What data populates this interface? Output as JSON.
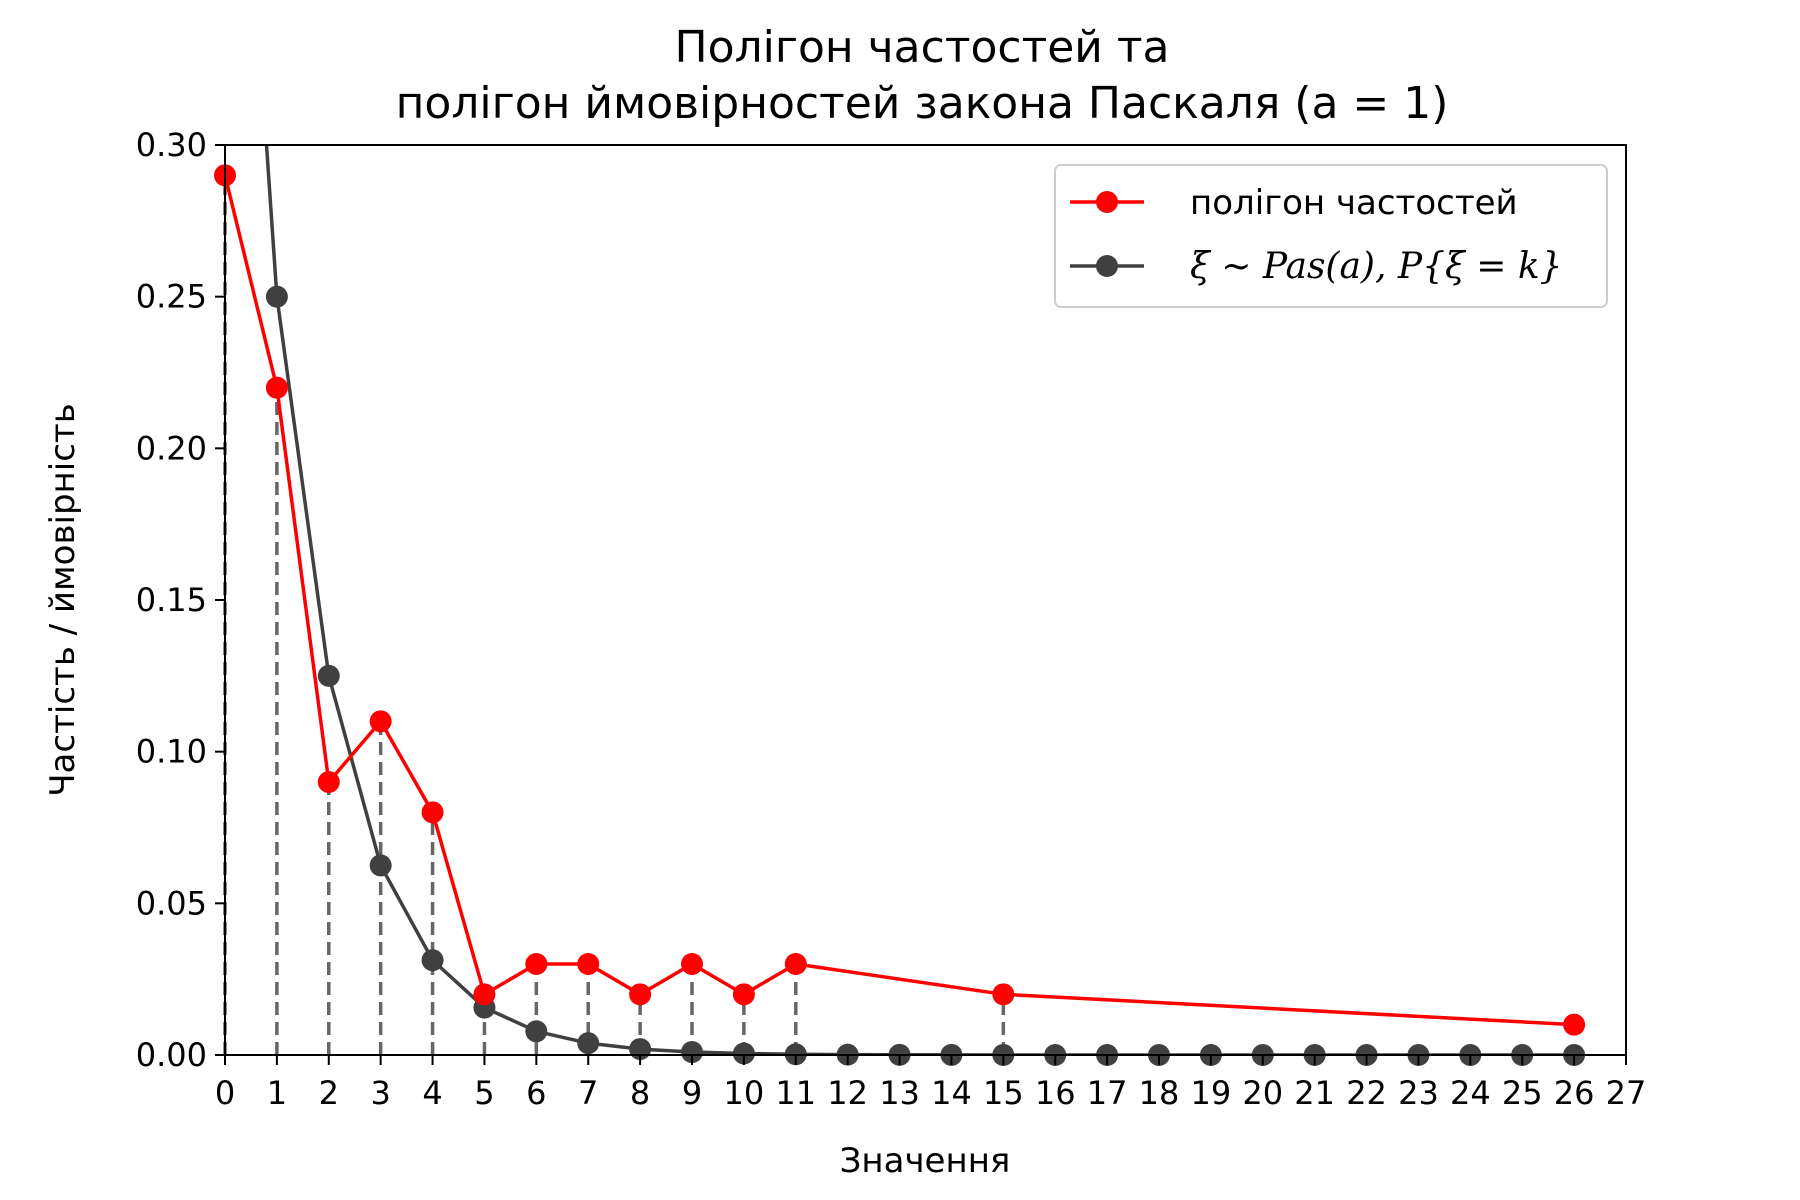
{
  "chart_data": {
    "type": "line",
    "title_lines": [
      "Полігон частостей та",
      "полігон ймовірностей закона Паскаля (a = 1)"
    ],
    "xlabel": "Значення",
    "ylabel": "Частість / ймовірність",
    "xlim": [
      0,
      27
    ],
    "ylim": [
      0,
      0.3
    ],
    "xticks": [
      0,
      1,
      2,
      3,
      4,
      5,
      6,
      7,
      8,
      9,
      10,
      11,
      12,
      13,
      14,
      15,
      16,
      17,
      18,
      19,
      20,
      21,
      22,
      23,
      24,
      25,
      26,
      27
    ],
    "yticks": [
      0,
      0.05,
      0.1,
      0.15,
      0.2,
      0.25,
      0.3
    ],
    "ytick_labels": [
      "0.00",
      "0.05",
      "0.10",
      "0.15",
      "0.20",
      "0.25",
      "0.30"
    ],
    "legend_position": "upper right",
    "series": [
      {
        "name": "полігон частостей",
        "color": "#ff0000",
        "x": [
          0,
          1,
          2,
          3,
          4,
          5,
          6,
          7,
          8,
          9,
          10,
          11,
          15,
          26
        ],
        "y": [
          0.29,
          0.22,
          0.09,
          0.11,
          0.08,
          0.02,
          0.03,
          0.03,
          0.02,
          0.03,
          0.02,
          0.03,
          0.02,
          0.01
        ]
      },
      {
        "name_parts": [
          "ξ ~ Pas(a), P{ξ = k}"
        ],
        "color": "#404040",
        "x": [
          0,
          1,
          2,
          3,
          4,
          5,
          6,
          7,
          8,
          9,
          10,
          11,
          12,
          13,
          14,
          15,
          16,
          17,
          18,
          19,
          20,
          21,
          22,
          23,
          24,
          25,
          26
        ],
        "y": [
          0.5,
          0.25,
          0.125,
          0.0625,
          0.03125,
          0.015625,
          0.0078125,
          0.00390625,
          0.001953125,
          0.0009765625,
          0.00048828125,
          0.000244140625,
          0.0001220703125,
          6.103515625e-05,
          3.0517578125e-05,
          1.52587890625e-05,
          7.62939453125e-06,
          3.814697265625e-06,
          1.9073486328125e-06,
          9.5367431640625e-07,
          4.76837158203125e-07,
          2.384185791015625e-07,
          1.1920928955078125e-07,
          5.960464477539063e-08,
          2.9802322387695312e-08,
          1.4901161193847656e-08,
          7.450580596923828e-09
        ]
      }
    ],
    "stems": {
      "color": "#666666",
      "style": "dashed",
      "x": [
        0,
        1,
        2,
        3,
        4,
        5,
        6,
        7,
        8,
        9,
        10,
        11,
        15
      ],
      "y": [
        0.29,
        0.22,
        0.09,
        0.11,
        0.08,
        0.02,
        0.03,
        0.03,
        0.02,
        0.03,
        0.02,
        0.03,
        0.02
      ]
    }
  }
}
